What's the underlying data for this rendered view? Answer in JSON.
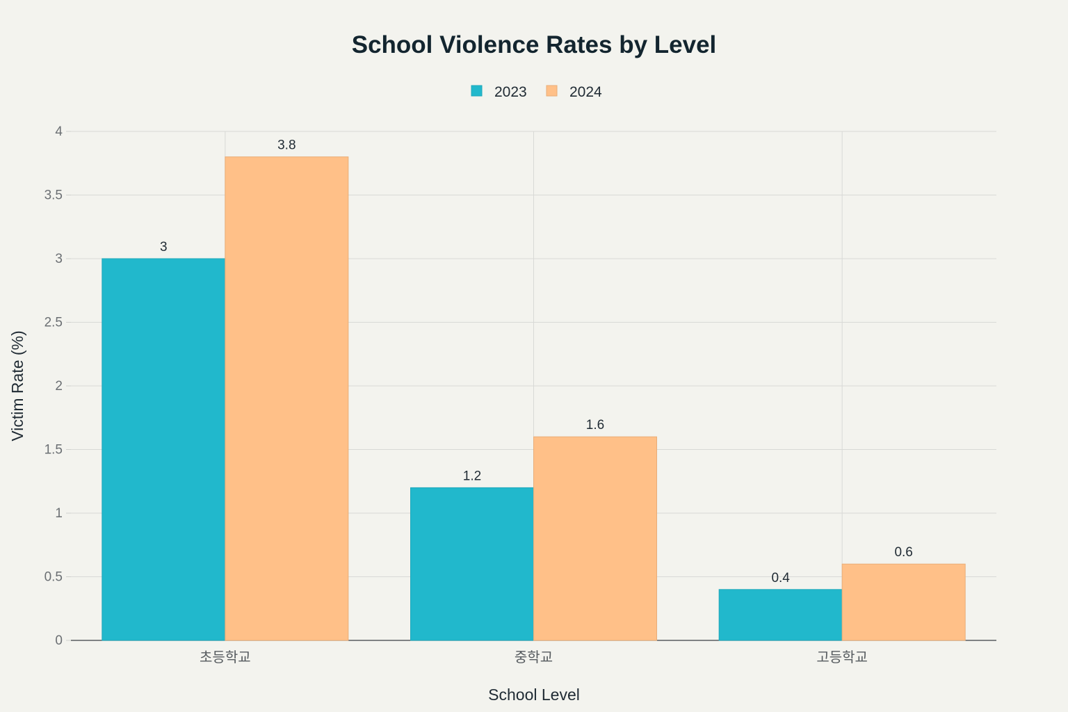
{
  "chart_data": {
    "type": "bar",
    "title": "School Violence Rates by Level",
    "xlabel": "School Level",
    "ylabel": "Victim Rate (%)",
    "categories": [
      "초등학교",
      "중학교",
      "고등학교"
    ],
    "series": [
      {
        "name": "2023",
        "values": [
          3,
          1.2,
          0.4
        ],
        "color": "#21b8cc"
      },
      {
        "name": "2024",
        "values": [
          3.8,
          1.6,
          0.6
        ],
        "color": "#ffc088"
      }
    ],
    "ylim": [
      0,
      4
    ],
    "yticks": [
      0,
      0.5,
      1,
      1.5,
      2,
      2.5,
      3,
      3.5,
      4
    ],
    "ytick_labels": [
      "0",
      "0.5",
      "1",
      "1.5",
      "2",
      "2.5",
      "3",
      "3.5",
      "4"
    ],
    "data_labels": [
      [
        "3",
        "1.2",
        "0.4"
      ],
      [
        "3.8",
        "1.6",
        "0.6"
      ]
    ],
    "grid": true,
    "legend_position": "top-center"
  }
}
